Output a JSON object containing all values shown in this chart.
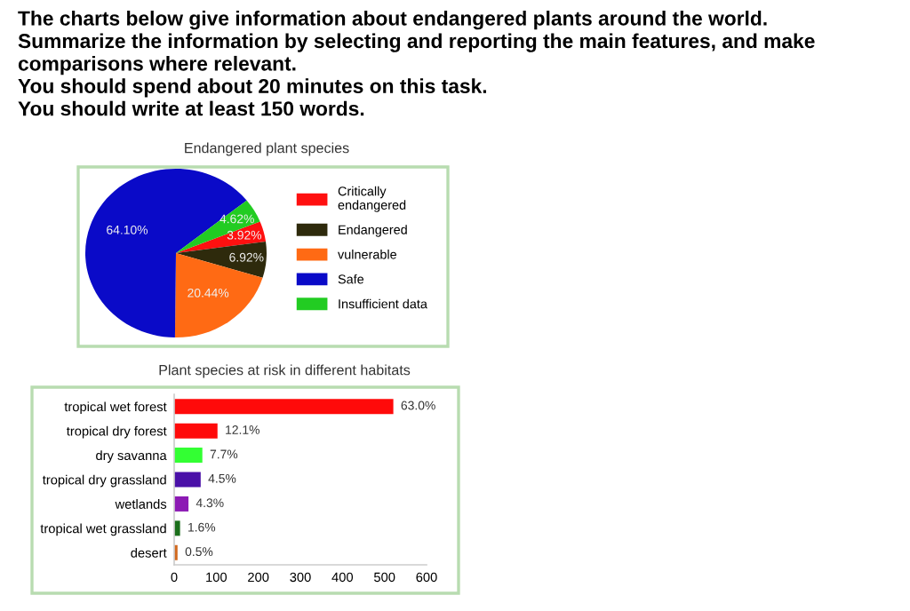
{
  "chart_data": [
    {
      "type": "pie",
      "title": "Endangered plant species",
      "annotations": [
        "The charts below give information about endangered plants around the world.",
        "Summarize the information by selecting and reporting the main features, and make comparisons where relevant.",
        "You should spend about 20 minutes on this task.",
        "You should write at least 150 words."
      ],
      "categories": [
        "Critically endangered",
        "Endangered",
        "vulnerable",
        "Safe",
        "Insufficient data"
      ],
      "values": [
        3.92,
        6.92,
        20.44,
        64.1,
        4.62
      ],
      "value_labels": [
        "3.92%",
        "6.92%",
        "20.44%",
        "64.10%",
        "4.62%"
      ],
      "colors": [
        "#ff1010",
        "#2e2a0c",
        "#ff6a14",
        "#0a0ac8",
        "#22cc22"
      ],
      "legend": "right"
    },
    {
      "type": "bar",
      "orientation": "horizontal",
      "title": "Plant species at risk in different habitats",
      "categories": [
        "tropical wet forest",
        "tropical dry forest",
        "dry savanna",
        "tropical dry grassland",
        "wetlands",
        "tropical wet grassland",
        "desert"
      ],
      "values": [
        521,
        103,
        67,
        63,
        34,
        14,
        8
      ],
      "annotations": [
        {
          "text": "63.0%",
          "x": 521,
          "y": "tropical wet forest"
        },
        {
          "text": "12.1%",
          "x": 103,
          "y": "tropical dry forest"
        },
        {
          "text": "7.7%",
          "x": 67,
          "y": "dry savanna"
        },
        {
          "text": "4.5%",
          "x": 63,
          "y": "tropical dry grassland"
        },
        {
          "text": "4.3%",
          "x": 34,
          "y": "wetlands"
        },
        {
          "text": "1.6%",
          "x": 14,
          "y": "tropical wet grassland"
        },
        {
          "text": "0.5%",
          "x": 8,
          "y": "desert"
        }
      ],
      "colors": [
        "#ff0a0a",
        "#ff0a0a",
        "#33ff33",
        "#4a10a8",
        "#8c1ab4",
        "#1a6e1a",
        "#d2691e"
      ],
      "xlim": [
        0,
        600
      ],
      "xticks": [
        0,
        100,
        200,
        300,
        400,
        500,
        600
      ],
      "grid": false
    }
  ]
}
